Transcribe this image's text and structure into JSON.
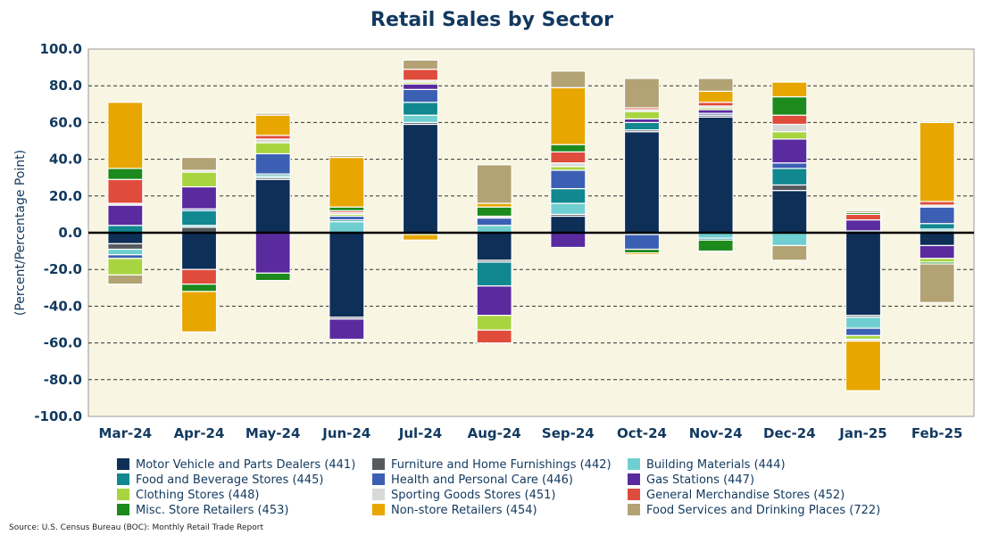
{
  "chart_data": {
    "type": "bar",
    "stacked": true,
    "title": "Retail Sales by Sector",
    "ylabel": "(Percent/Percentage Point)",
    "xlabel": "",
    "ylim": [
      -100,
      100
    ],
    "yticks": [
      "100.0",
      "80.0",
      "60.0",
      "40.0",
      "20.0",
      "0.0",
      "-20.0",
      "-40.0",
      "-60.0",
      "-80.0",
      "-100.0"
    ],
    "grid": "horizontal dashed",
    "legend_position": "bottom",
    "categories": [
      "Mar-24",
      "Apr-24",
      "May-24",
      "Jun-24",
      "Jul-24",
      "Aug-24",
      "Sep-24",
      "Oct-24",
      "Nov-24",
      "Dec-24",
      "Jan-25",
      "Feb-25"
    ],
    "series": [
      {
        "name": "Motor Vehicle and Parts Dealers (441)",
        "color": "#0e2f57",
        "values": [
          -6,
          -20,
          29,
          -46,
          59,
          -15,
          9,
          55,
          63,
          23,
          -45,
          -7
        ]
      },
      {
        "name": "Furniture and Home Furnishings (442)",
        "color": "#555a5f",
        "values": [
          -3,
          3,
          1,
          -1,
          1,
          -1,
          1,
          1,
          1,
          3,
          -1,
          1
        ]
      },
      {
        "name": "Building Materials (444)",
        "color": "#6fcfd0",
        "values": [
          -3,
          1,
          1,
          6,
          4,
          4,
          6,
          -1,
          -3,
          -7,
          -6,
          1
        ]
      },
      {
        "name": "Food and Beverage Stores (445)",
        "color": "#11888f",
        "values": [
          4,
          8,
          1,
          1,
          7,
          -13,
          8,
          4,
          -1,
          9,
          1,
          3
        ]
      },
      {
        "name": "Health and Personal Care (446)",
        "color": "#3b5fb3",
        "values": [
          -2,
          1,
          11,
          2,
          7,
          4,
          10,
          -8,
          1,
          3,
          -4,
          9
        ]
      },
      {
        "name": "Gas Stations (447)",
        "color": "#5a2a9f",
        "values": [
          11,
          12,
          -22,
          -11,
          3,
          -16,
          -8,
          2,
          2,
          13,
          6,
          -7
        ]
      },
      {
        "name": "Clothing Stores (448)",
        "color": "#a8d53f",
        "values": [
          -9,
          8,
          6,
          1,
          1,
          -8,
          2,
          4,
          1,
          4,
          -2,
          -2
        ]
      },
      {
        "name": "Sporting Goods Stores (451)",
        "color": "#d7dad7",
        "values": [
          1,
          1,
          2,
          1,
          1,
          1,
          2,
          1,
          1,
          4,
          -1,
          1
        ]
      },
      {
        "name": "General Merchandise Stores (452)",
        "color": "#e04c3c",
        "values": [
          13,
          -8,
          2,
          1,
          6,
          -7,
          6,
          1,
          2,
          5,
          3,
          2
        ]
      },
      {
        "name": "Misc. Store Retailers (453)",
        "color": "#1c8a1c",
        "values": [
          6,
          -4,
          -4,
          2,
          -1,
          5,
          4,
          -2,
          -6,
          10,
          1,
          -1
        ]
      },
      {
        "name": "Non-store Retailers (454)",
        "color": "#e8a600",
        "values": [
          36,
          -22,
          11,
          27,
          -3,
          2,
          31,
          -1,
          6,
          8,
          -27,
          43
        ]
      },
      {
        "name": "Food Services and Drinking Places (722)",
        "color": "#b3a374",
        "values": [
          -5,
          7,
          1,
          1,
          5,
          21,
          9,
          16,
          7,
          -8,
          1,
          -21
        ]
      }
    ]
  },
  "source": "Source: U.S. Census Bureau (BOC): Monthly Retail Trade Report",
  "colors": {
    "plot_background": "#f8f5e3",
    "title": "#12395f",
    "axis_text": "#12395f"
  }
}
